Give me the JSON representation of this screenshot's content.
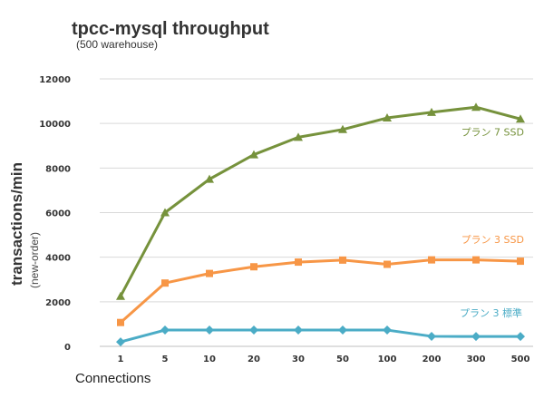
{
  "chart_data": {
    "type": "line",
    "title": "tpcc-mysql throughput",
    "subtitle": "(500 warehouse)",
    "ylabel": "transactions/min",
    "ylabel_sub": "(new-order)",
    "xlabel": "Connections",
    "categories": [
      "1",
      "5",
      "10",
      "20",
      "30",
      "50",
      "100",
      "200",
      "300",
      "500"
    ],
    "ylim": [
      0,
      12000
    ],
    "yticks": [
      0,
      2000,
      4000,
      6000,
      8000,
      10000,
      12000
    ],
    "ytick_labels": [
      "0",
      "2000",
      "4000",
      "6000",
      "8000",
      "10000",
      "12000"
    ],
    "grid": true,
    "series": [
      {
        "name": "プラン 7 SSD",
        "color": "#76923c",
        "marker": "triangle",
        "values": [
          2250,
          6000,
          7500,
          8600,
          9380,
          9730,
          10250,
          10500,
          10730,
          10200
        ]
      },
      {
        "name": "プラン 3 SSD",
        "color": "#f79646",
        "marker": "square",
        "values": [
          1070,
          2840,
          3270,
          3570,
          3780,
          3870,
          3680,
          3880,
          3880,
          3820
        ]
      },
      {
        "name": "プラン 3 標準",
        "color": "#4bacc6",
        "marker": "diamond",
        "values": [
          200,
          730,
          730,
          730,
          730,
          730,
          730,
          450,
          440,
          440
        ]
      }
    ]
  }
}
